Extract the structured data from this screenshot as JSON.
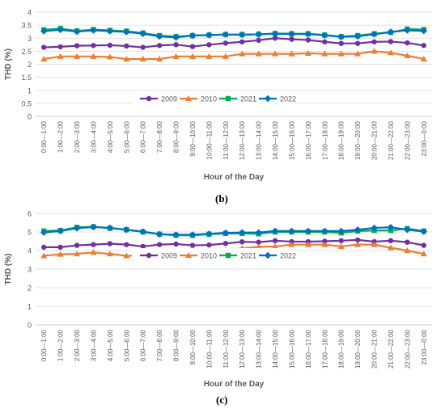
{
  "panels": {
    "b": "(b)",
    "c": "(c)"
  },
  "chart_data": [
    {
      "type": "line",
      "title": "",
      "xlabel": "Hour of the Day",
      "ylabel": "THD (%)",
      "ylim": [
        0,
        4
      ],
      "yticks": [
        "0",
        "0.5",
        "1",
        "1.5",
        "2",
        "2.5",
        "3",
        "3.5",
        "4"
      ],
      "grid": "horizontal",
      "legend_position": "middle",
      "categories": [
        "0:00—1:00",
        "1:00—2:00",
        "2:00—3:00",
        "3:00—4:00",
        "4:00—5:00",
        "5:00—6:00",
        "6:00—7:00",
        "7:00—8:00",
        "8:00—9:00",
        "9:00—10:00",
        "10:00—11:00",
        "11:00—12:00",
        "12:00—13:00",
        "13:00—14:00",
        "14:00—15:00",
        "15:00—16:00",
        "16:00—17:00",
        "17:00—18:00",
        "18:00—19:00",
        "19:00—20:00",
        "20:00—21:00",
        "21:00—22:00",
        "22:00—23:00",
        "23:00—0:00"
      ],
      "series": [
        {
          "name": "2009",
          "color": "#7030A0",
          "marker": "circle",
          "values": [
            2.65,
            2.67,
            2.71,
            2.72,
            2.73,
            2.7,
            2.65,
            2.72,
            2.75,
            2.68,
            2.75,
            2.81,
            2.86,
            2.92,
            3.0,
            2.96,
            2.93,
            2.86,
            2.8,
            2.8,
            2.86,
            2.87,
            2.82,
            2.72
          ]
        },
        {
          "name": "2010",
          "color": "#ED7D31",
          "marker": "triangle",
          "values": [
            2.2,
            2.3,
            2.3,
            2.3,
            2.28,
            2.2,
            2.2,
            2.2,
            2.3,
            2.3,
            2.3,
            2.3,
            2.4,
            2.4,
            2.4,
            2.4,
            2.42,
            2.4,
            2.4,
            2.4,
            2.5,
            2.44,
            2.33,
            2.2
          ]
        },
        {
          "name": "2021",
          "color": "#00B050",
          "marker": "square",
          "values": [
            3.32,
            3.37,
            3.28,
            3.33,
            3.3,
            3.27,
            3.2,
            3.1,
            3.06,
            3.1,
            3.12,
            3.14,
            3.14,
            3.15,
            3.18,
            3.17,
            3.17,
            3.12,
            3.06,
            3.1,
            3.17,
            3.22,
            3.35,
            3.33
          ]
        },
        {
          "name": "2022",
          "color": "#0070C0",
          "marker": "diamond",
          "values": [
            3.27,
            3.32,
            3.25,
            3.3,
            3.27,
            3.24,
            3.17,
            3.07,
            3.03,
            3.1,
            3.12,
            3.14,
            3.13,
            3.15,
            3.17,
            3.16,
            3.16,
            3.11,
            3.05,
            3.07,
            3.15,
            3.24,
            3.3,
            3.28
          ]
        }
      ]
    },
    {
      "type": "line",
      "title": "",
      "xlabel": "Hour of the Day",
      "ylabel": "THD (%)",
      "ylim": [
        0,
        6
      ],
      "yticks": [
        "0",
        "1",
        "2",
        "3",
        "4",
        "5",
        "6"
      ],
      "grid": "horizontal",
      "legend_position": "middle",
      "categories": [
        "0:00—1:00",
        "1:00—2:00",
        "2:00—3:00",
        "3:00—4:00",
        "4:00—5:00",
        "5:00—6:00",
        "6:00—7:00",
        "7:00—8:00",
        "8:00—9:00",
        "9:00—10:00",
        "10:00—11:00",
        "11:00—12:00",
        "12:00—13:00",
        "13:00—14:00",
        "14:00—15:00",
        "15:00—16:00",
        "16:00—17:00",
        "17:00—18:00",
        "18:00—19:00",
        "19:00—20:00",
        "20:00—21:00",
        "21:00—22:00",
        "22:00—23:00",
        "23:00—0:00"
      ],
      "series": [
        {
          "name": "2009",
          "color": "#7030A0",
          "marker": "circle",
          "values": [
            4.18,
            4.18,
            4.28,
            4.32,
            4.37,
            4.32,
            4.22,
            4.32,
            4.35,
            4.28,
            4.3,
            4.38,
            4.47,
            4.45,
            4.53,
            4.48,
            4.48,
            4.5,
            4.53,
            4.57,
            4.48,
            4.53,
            4.45,
            4.28
          ]
        },
        {
          "name": "2010",
          "color": "#ED7D31",
          "marker": "triangle",
          "values": [
            3.72,
            3.8,
            3.82,
            3.9,
            3.82,
            3.72,
            3.72,
            3.72,
            3.8,
            3.87,
            3.92,
            4.02,
            4.12,
            4.2,
            4.22,
            4.32,
            4.32,
            4.32,
            4.22,
            4.32,
            4.32,
            4.15,
            4.0,
            3.82
          ]
        },
        {
          "name": "2021",
          "color": "#00B050",
          "marker": "square",
          "values": [
            5.05,
            5.08,
            5.25,
            5.28,
            5.2,
            5.12,
            5.0,
            4.88,
            4.82,
            4.82,
            4.88,
            4.92,
            4.92,
            4.9,
            5.0,
            5.0,
            5.0,
            5.0,
            4.95,
            5.05,
            5.08,
            5.08,
            5.18,
            5.05
          ]
        },
        {
          "name": "2022",
          "color": "#0070C0",
          "marker": "diamond",
          "values": [
            4.97,
            5.05,
            5.2,
            5.27,
            5.22,
            5.12,
            5.02,
            4.88,
            4.85,
            4.85,
            4.9,
            4.95,
            4.97,
            4.97,
            5.05,
            5.05,
            5.05,
            5.05,
            5.05,
            5.12,
            5.22,
            5.25,
            5.12,
            5.02
          ]
        }
      ]
    }
  ]
}
